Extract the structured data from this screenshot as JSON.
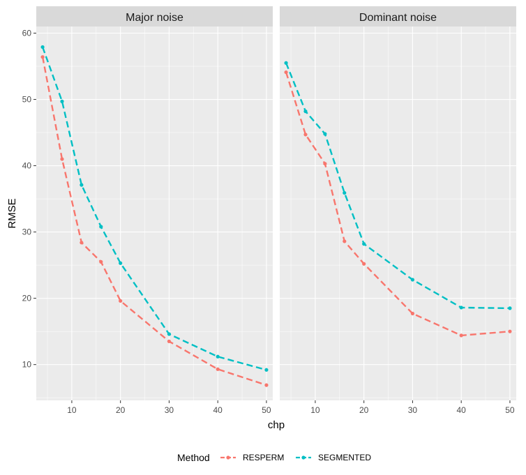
{
  "chart_data": {
    "type": "line",
    "xlabel": "chp",
    "ylabel": "RMSE",
    "xlim": [
      2.7,
      51.3
    ],
    "ylim": [
      4.6,
      61.0
    ],
    "xticks": [
      10,
      20,
      30,
      40,
      50
    ],
    "yticks": [
      10,
      20,
      30,
      40,
      50,
      60
    ],
    "legend": {
      "title": "Method",
      "position": "bottom"
    },
    "colors": {
      "RESPERM": "#F8766D",
      "SEGMENTED": "#00BFC4"
    },
    "panels": [
      {
        "title": "Major noise",
        "x": [
          4,
          8,
          12,
          16,
          20,
          30,
          40,
          50
        ],
        "series": [
          {
            "name": "RESPERM",
            "values": [
              56.4,
              41.0,
              28.4,
              25.5,
              19.6,
              13.5,
              9.3,
              6.9
            ]
          },
          {
            "name": "SEGMENTED",
            "values": [
              57.9,
              49.7,
              37.1,
              30.8,
              25.3,
              14.6,
              11.2,
              9.2
            ]
          }
        ]
      },
      {
        "title": "Dominant noise",
        "x": [
          4,
          8,
          12,
          16,
          20,
          30,
          40,
          50
        ],
        "series": [
          {
            "name": "RESPERM",
            "values": [
              54.1,
              44.7,
              40.3,
              28.6,
              25.2,
              17.7,
              14.4,
              15.0
            ]
          },
          {
            "name": "SEGMENTED",
            "values": [
              55.5,
              48.2,
              44.8,
              35.9,
              28.2,
              22.8,
              18.6,
              18.5
            ]
          }
        ]
      }
    ]
  }
}
